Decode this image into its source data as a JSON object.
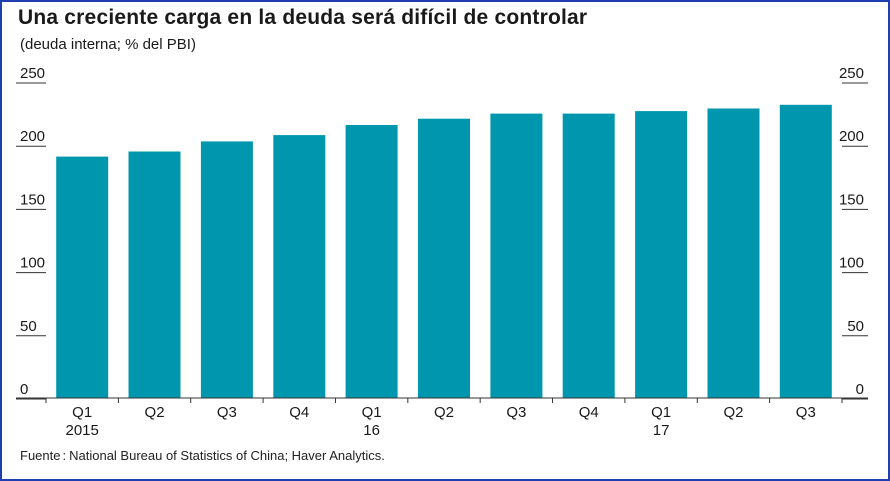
{
  "title": "Una creciente carga en la deuda será difícil de controlar",
  "subtitle": "(deuda interna; % del PBI)",
  "source": {
    "label": "Fuente",
    "text": "National Bureau of Statistics of China; Haver Analytics."
  },
  "colors": {
    "bar": "#0097ae",
    "frame": "#1f3fb0",
    "axis": "#333333",
    "text": "#1a1a1a"
  },
  "chart_data": {
    "type": "bar",
    "title": "Una creciente carga en la deuda será difícil de controlar",
    "subtitle": "(deuda interna; % del PBI)",
    "categories": [
      "Q1",
      "Q2",
      "Q3",
      "Q4",
      "Q1",
      "Q2",
      "Q3",
      "Q4",
      "Q1",
      "Q2",
      "Q3"
    ],
    "year_labels": [
      "2015",
      "",
      "",
      "",
      "16",
      "",
      "",
      "",
      "17",
      "",
      ""
    ],
    "values": [
      191,
      195,
      203,
      208,
      216,
      221,
      225,
      225,
      227,
      229,
      232
    ],
    "ylim": [
      0,
      250
    ],
    "yticks": [
      0,
      50,
      100,
      150,
      200,
      250
    ],
    "y_axis_both_sides": true,
    "grid": false,
    "xlabel": "",
    "ylabel": ""
  }
}
